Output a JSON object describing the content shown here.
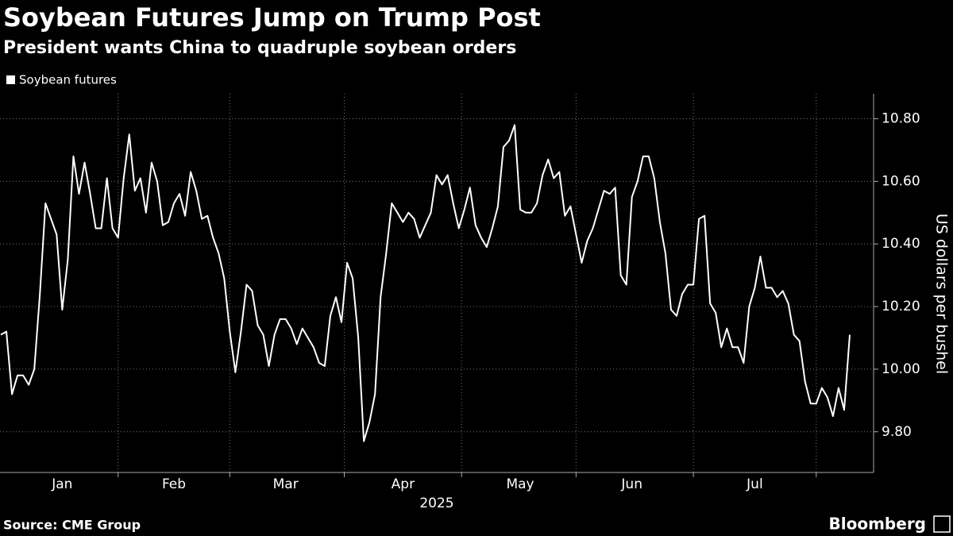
{
  "chart_data": {
    "type": "line",
    "title": "Soybean Futures Jump on Trump Post",
    "subtitle": "President wants China to quadruple soybean orders",
    "xlabel": "2025",
    "ylabel": "US dollars per bushel",
    "source": "Source: CME Group",
    "logo": "Bloomberg",
    "categories": [
      null,
      null,
      null,
      null,
      null,
      null,
      null,
      null,
      null,
      null,
      null,
      "Jan",
      null,
      null,
      null,
      null,
      null,
      null,
      null,
      null,
      null,
      null,
      null,
      null,
      null,
      null,
      null,
      null,
      null,
      null,
      null,
      "Feb",
      null,
      null,
      null,
      null,
      null,
      null,
      null,
      null,
      null,
      null,
      null,
      null,
      null,
      null,
      null,
      null,
      null,
      null,
      null,
      "Mar",
      null,
      null,
      null,
      null,
      null,
      null,
      null,
      null,
      null,
      null,
      null,
      null,
      null,
      null,
      null,
      null,
      null,
      null,
      null,
      null,
      "Apr",
      null,
      null,
      null,
      null,
      null,
      null,
      null,
      null,
      null,
      null,
      null,
      null,
      null,
      null,
      null,
      null,
      null,
      null,
      null,
      null,
      "May",
      null,
      null,
      null,
      null,
      null,
      null,
      null,
      null,
      null,
      null,
      null,
      null,
      null,
      null,
      null,
      null,
      null,
      null,
      null,
      "Jun",
      null,
      null,
      null,
      null,
      null,
      null,
      null,
      null,
      null,
      null,
      null,
      null,
      null,
      null,
      null,
      null,
      null,
      null,
      null,
      null,
      null,
      "Jul",
      null,
      null,
      null,
      null,
      null,
      null,
      null,
      null,
      null,
      null,
      null,
      null,
      null,
      null,
      null,
      null,
      null
    ],
    "series": [
      {
        "name": "Soybean futures",
        "color": "#ffffff",
        "values": [
          10.11,
          10.12,
          9.92,
          9.98,
          9.98,
          9.95,
          10.0,
          10.24,
          10.53,
          10.48,
          10.43,
          10.19,
          10.35,
          10.68,
          10.56,
          10.66,
          10.56,
          10.45,
          10.45,
          10.61,
          10.45,
          10.42,
          10.61,
          10.75,
          10.57,
          10.61,
          10.5,
          10.66,
          10.6,
          10.46,
          10.47,
          10.53,
          10.56,
          10.49,
          10.63,
          10.57,
          10.48,
          10.49,
          10.42,
          10.37,
          10.29,
          10.12,
          9.99,
          10.12,
          10.27,
          10.25,
          10.14,
          10.11,
          10.01,
          10.11,
          10.16,
          10.16,
          10.13,
          10.08,
          10.13,
          10.1,
          10.07,
          10.02,
          10.01,
          10.17,
          10.23,
          10.15,
          10.34,
          10.29,
          10.1,
          9.77,
          9.83,
          9.92,
          10.23,
          10.37,
          10.53,
          10.5,
          10.47,
          10.5,
          10.48,
          10.42,
          10.46,
          10.5,
          10.62,
          10.59,
          10.62,
          10.53,
          10.45,
          10.51,
          10.58,
          10.46,
          10.42,
          10.39,
          10.45,
          10.52,
          10.71,
          10.73,
          10.78,
          10.51,
          10.5,
          10.5,
          10.53,
          10.62,
          10.67,
          10.61,
          10.63,
          10.49,
          10.52,
          10.43,
          10.34,
          10.41,
          10.45,
          10.51,
          10.57,
          10.56,
          10.58,
          10.3,
          10.27,
          10.55,
          10.6,
          10.68,
          10.68,
          10.61,
          10.47,
          10.37,
          10.19,
          10.17,
          10.24,
          10.27,
          10.27,
          10.48,
          10.49,
          10.21,
          10.18,
          10.07,
          10.13,
          10.07,
          10.07,
          10.02,
          10.2,
          10.26,
          10.36,
          10.26,
          10.26,
          10.23,
          10.25,
          10.21,
          10.11,
          10.09,
          9.96,
          9.89,
          9.89,
          9.94,
          9.91,
          9.85,
          9.94,
          9.87,
          10.11
        ]
      }
    ],
    "ylim": [
      9.67,
      10.88
    ],
    "yticks": [
      {
        "value": 9.8,
        "label": "9.80"
      },
      {
        "value": 10,
        "label": "10.00"
      },
      {
        "value": 10.2,
        "label": "10.20"
      },
      {
        "value": 10.4,
        "label": "10.40"
      },
      {
        "value": 10.6,
        "label": "10.60"
      },
      {
        "value": 10.8,
        "label": "10.80"
      }
    ],
    "grid": true,
    "legend": "top-left"
  }
}
